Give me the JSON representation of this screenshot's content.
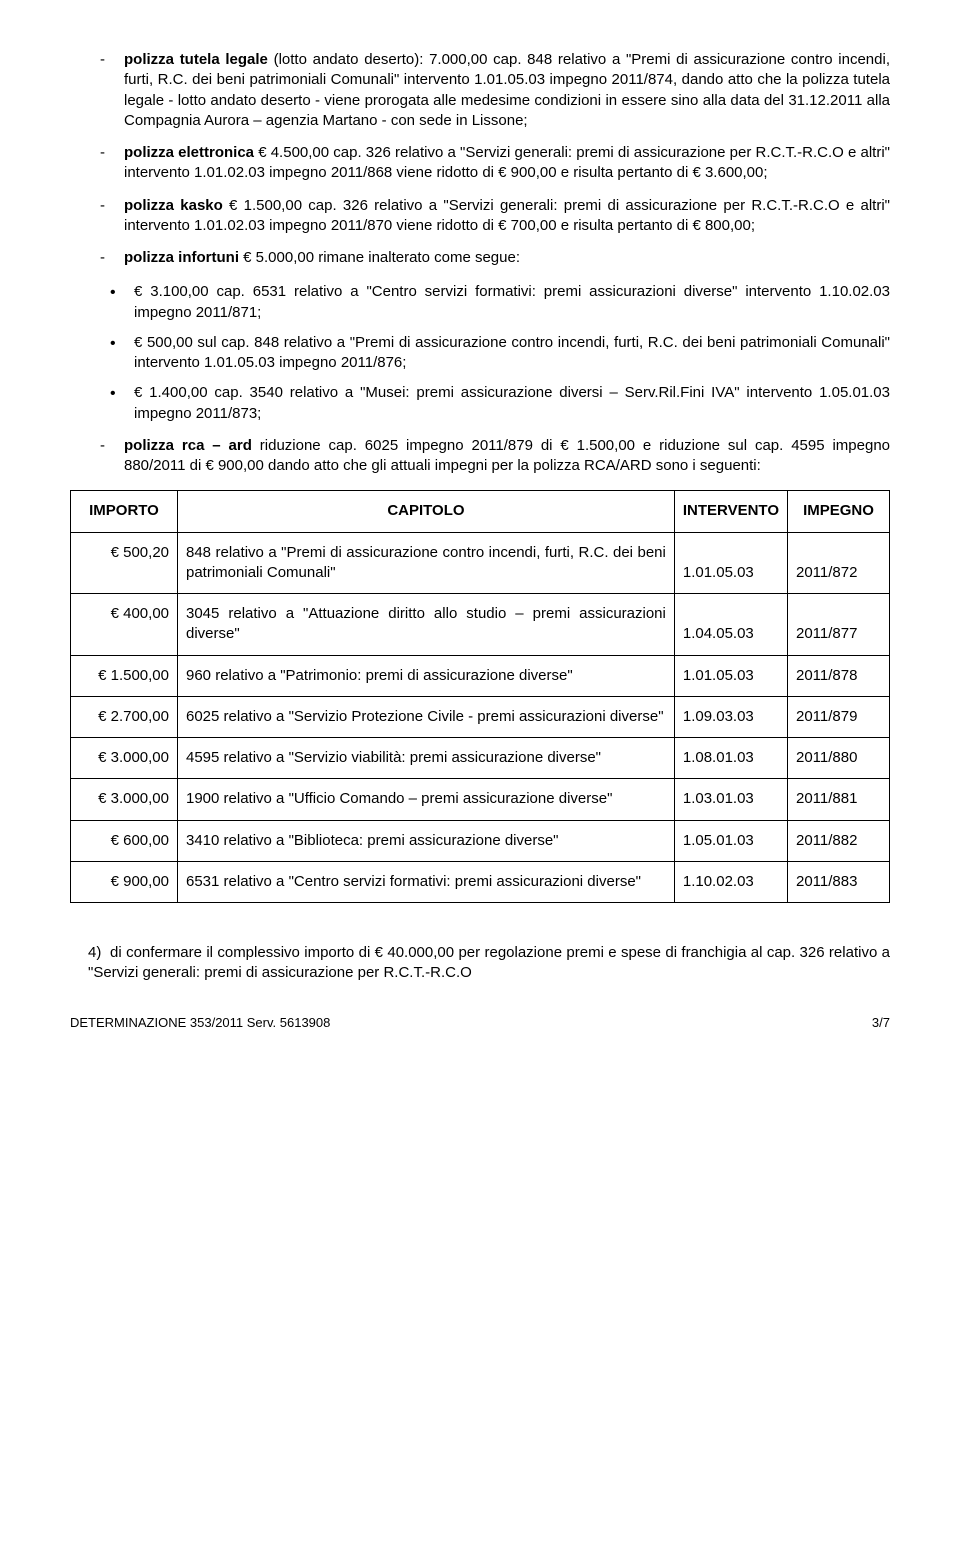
{
  "bullets_top": [
    {
      "html": "<b>polizza tutela legale</b> (lotto andato deserto): 7.000,00 cap. 848 relativo a \"Premi di assicurazione contro incendi, furti, R.C. dei beni patrimoniali Comunali\" intervento 1.01.05.03 impegno 2011/874, dando atto che la polizza tutela legale - lotto andato deserto - viene prorogata alle medesime condizioni in essere sino alla data del 31.12.2011 alla Compagnia Aurora – agenzia Martano - con sede in Lissone;"
    },
    {
      "html": "<b>polizza elettronica</b> € 4.500,00 cap. 326 relativo a \"Servizi generali: premi di assicurazione per R.C.T.-R.C.O e altri\" intervento 1.01.02.03 impegno 2011/868 viene ridotto di € 900,00 e risulta pertanto di € 3.600,00;"
    },
    {
      "html": "<b>polizza kasko</b> € 1.500,00 cap. 326 relativo a \"Servizi generali: premi di assicurazione per R.C.T.-R.C.O e altri\" intervento 1.01.02.03 impegno 2011/870 viene ridotto di € 700,00 e risulta pertanto di € 800,00;"
    },
    {
      "html": "<b>polizza infortuni</b> € 5.000,00 rimane inalterato come segue:"
    }
  ],
  "sub_bullets": [
    "€ 3.100,00 cap. 6531 relativo a \"Centro servizi formativi: premi assicurazioni diverse\" intervento 1.10.02.03 impegno 2011/871;",
    "€ 500,00 sul cap. 848 relativo a \"Premi di assicurazione contro incendi, furti, R.C. dei beni patrimoniali Comunali\" intervento 1.01.05.03 impegno 2011/876;",
    "€ 1.400,00 cap. 3540 relativo a \"Musei: premi assicurazione diversi – Serv.Ril.Fini IVA\" intervento 1.05.01.03 impegno 2011/873;"
  ],
  "bullet_rca": "<b>polizza rca – ard</b> riduzione cap. 6025 impegno 2011/879 di € 1.500,00 e riduzione sul cap. 4595 impegno 880/2011 di € 900,00 dando atto che gli attuali impegni per la polizza RCA/ARD sono i seguenti:",
  "table": {
    "headers": [
      "IMPORTO",
      "CAPITOLO",
      "INTERVENTO",
      "IMPEGNO"
    ],
    "rows": [
      {
        "amount": "€ 500,20",
        "desc": "848 relativo a \"Premi di assicurazione contro incendi, furti, R.C. dei beni patrimoniali Comunali\"",
        "inter": "1.01.05.03",
        "imp": "2011/872"
      },
      {
        "amount": "€ 400,00",
        "desc": "3045 relativo a \"Attuazione diritto allo studio – premi assicurazioni diverse\"",
        "inter": "1.04.05.03",
        "imp": "2011/877"
      },
      {
        "amount": "€ 1.500,00",
        "desc": "960 relativo a \"Patrimonio: premi di assicurazione diverse\"",
        "inter": "1.01.05.03",
        "imp": "2011/878"
      },
      {
        "amount": "€ 2.700,00",
        "desc": "6025 relativo a \"Servizio Protezione Civile - premi assicurazioni diverse\"",
        "inter": "1.09.03.03",
        "imp": "2011/879"
      },
      {
        "amount": "€ 3.000,00",
        "desc": "4595 relativo a \"Servizio viabilità: premi assicurazione diverse\"",
        "inter": "1.08.01.03",
        "imp": "2011/880"
      },
      {
        "amount": "€ 3.000,00",
        "desc": "1900 relativo a \"Ufficio Comando – premi assicurazione diverse\"",
        "inter": "1.03.01.03",
        "imp": "2011/881"
      },
      {
        "amount": "€ 600,00",
        "desc": "3410 relativo a \"Biblioteca: premi assicurazione diverse\"",
        "inter": "1.05.01.03",
        "imp": "2011/882"
      },
      {
        "amount": "€ 900,00",
        "desc": "6531 relativo a \"Centro servizi formativi: premi assicurazioni diverse\"",
        "inter": "1.10.02.03",
        "imp": "2011/883"
      }
    ]
  },
  "closing": "4)&nbsp;&nbsp;di confermare il complessivo importo di € 40.000,00 per regolazione premi e spese di franchigia al cap. 326 relativo a \"Servizi generali: premi di assicurazione per R.C.T.-R.C.O",
  "footer_left": "DETERMINAZIONE 353/2011 Serv. 5613908",
  "footer_right": "3/7"
}
